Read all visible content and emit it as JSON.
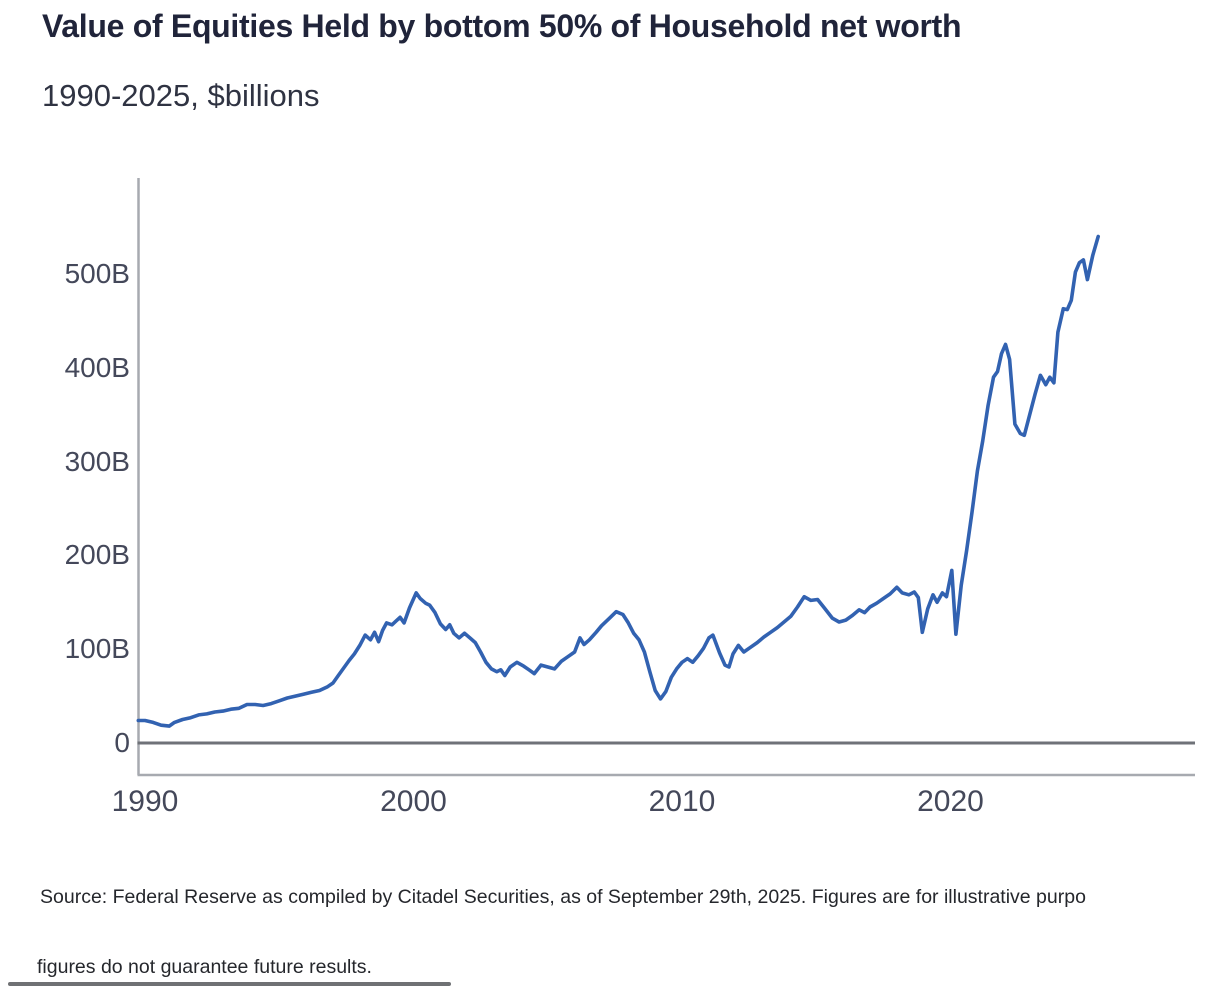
{
  "header": {
    "title": "Value of Equities Held by bottom 50% of Household net worth",
    "subtitle": "1990-2025, $billions"
  },
  "footer": {
    "source_line": "Source: Federal Reserve as compiled by Citadel Securities, as of September 29th, 2025. Figures are for illustrative purpo",
    "disclaimer_line": "figures do not guarantee future results."
  },
  "colors": {
    "line": "#3262b1",
    "title_text": "#20243a",
    "tick_text": "#44485a",
    "axis": "#a7aab0",
    "zero_line": "#6f7278",
    "footer_text": "#25272c"
  },
  "chart_data": {
    "type": "line",
    "title": "Value of Equities Held by bottom 50% of Household net worth",
    "subtitle": "1990-2025, $billions",
    "xlabel": "",
    "ylabel": "$billions",
    "grid": false,
    "legend": "none",
    "ylim": [
      0,
      600
    ],
    "x_axis_range_years": [
      1990,
      2029
    ],
    "y_ticks": [
      {
        "label": "500B",
        "value": 500
      },
      {
        "label": "400B",
        "value": 400
      },
      {
        "label": "300B",
        "value": 300
      },
      {
        "label": "200B",
        "value": 200
      },
      {
        "label": "100B",
        "value": 100
      },
      {
        "label": "0",
        "value": 0
      }
    ],
    "x_ticks": [
      {
        "label": "1990",
        "year": 1990
      },
      {
        "label": "2000",
        "year": 2000
      },
      {
        "label": "2010",
        "year": 2010
      },
      {
        "label": "2020",
        "year": 2020
      }
    ],
    "series": [
      {
        "name": "Value of equities held by bottom 50% of household net worth ($B)",
        "points": [
          [
            1989.75,
            24
          ],
          [
            1990.0,
            24
          ],
          [
            1990.3,
            22
          ],
          [
            1990.6,
            19
          ],
          [
            1990.9,
            18
          ],
          [
            1991.1,
            22
          ],
          [
            1991.4,
            25
          ],
          [
            1991.7,
            27
          ],
          [
            1992.0,
            30
          ],
          [
            1992.3,
            31
          ],
          [
            1992.6,
            33
          ],
          [
            1992.9,
            34
          ],
          [
            1993.2,
            36
          ],
          [
            1993.5,
            37
          ],
          [
            1993.8,
            41
          ],
          [
            1994.1,
            41
          ],
          [
            1994.4,
            40
          ],
          [
            1994.7,
            42
          ],
          [
            1995.0,
            45
          ],
          [
            1995.3,
            48
          ],
          [
            1995.6,
            50
          ],
          [
            1995.9,
            52
          ],
          [
            1996.2,
            54
          ],
          [
            1996.5,
            56
          ],
          [
            1996.8,
            60
          ],
          [
            1997.0,
            64
          ],
          [
            1997.2,
            72
          ],
          [
            1997.4,
            80
          ],
          [
            1997.6,
            88
          ],
          [
            1997.8,
            95
          ],
          [
            1998.0,
            104
          ],
          [
            1998.2,
            115
          ],
          [
            1998.4,
            110
          ],
          [
            1998.55,
            118
          ],
          [
            1998.7,
            108
          ],
          [
            1998.85,
            120
          ],
          [
            1999.0,
            128
          ],
          [
            1999.2,
            126
          ],
          [
            1999.35,
            130
          ],
          [
            1999.5,
            134
          ],
          [
            1999.65,
            128
          ],
          [
            1999.85,
            144
          ],
          [
            2000.1,
            160
          ],
          [
            2000.25,
            154
          ],
          [
            2000.45,
            149
          ],
          [
            2000.6,
            147
          ],
          [
            2000.8,
            139
          ],
          [
            2001.0,
            127
          ],
          [
            2001.2,
            121
          ],
          [
            2001.35,
            126
          ],
          [
            2001.5,
            117
          ],
          [
            2001.7,
            112
          ],
          [
            2001.9,
            117
          ],
          [
            2002.1,
            112
          ],
          [
            2002.3,
            107
          ],
          [
            2002.5,
            97
          ],
          [
            2002.7,
            86
          ],
          [
            2002.9,
            79
          ],
          [
            2003.1,
            76
          ],
          [
            2003.25,
            78
          ],
          [
            2003.4,
            72
          ],
          [
            2003.6,
            81
          ],
          [
            2003.85,
            86
          ],
          [
            2004.1,
            82
          ],
          [
            2004.3,
            78
          ],
          [
            2004.5,
            74
          ],
          [
            2004.75,
            83
          ],
          [
            2005.0,
            81
          ],
          [
            2005.25,
            79
          ],
          [
            2005.5,
            87
          ],
          [
            2005.75,
            92
          ],
          [
            2006.0,
            97
          ],
          [
            2006.2,
            112
          ],
          [
            2006.35,
            105
          ],
          [
            2006.55,
            110
          ],
          [
            2006.8,
            118
          ],
          [
            2007.0,
            125
          ],
          [
            2007.3,
            133
          ],
          [
            2007.55,
            140
          ],
          [
            2007.8,
            137
          ],
          [
            2008.0,
            128
          ],
          [
            2008.2,
            117
          ],
          [
            2008.4,
            110
          ],
          [
            2008.6,
            97
          ],
          [
            2008.8,
            76
          ],
          [
            2009.0,
            56
          ],
          [
            2009.2,
            47
          ],
          [
            2009.4,
            55
          ],
          [
            2009.6,
            70
          ],
          [
            2009.8,
            79
          ],
          [
            2010.0,
            86
          ],
          [
            2010.2,
            90
          ],
          [
            2010.4,
            86
          ],
          [
            2010.6,
            93
          ],
          [
            2010.8,
            101
          ],
          [
            2011.0,
            112
          ],
          [
            2011.15,
            115
          ],
          [
            2011.4,
            96
          ],
          [
            2011.6,
            83
          ],
          [
            2011.75,
            81
          ],
          [
            2011.9,
            95
          ],
          [
            2012.1,
            104
          ],
          [
            2012.3,
            97
          ],
          [
            2012.55,
            102
          ],
          [
            2012.8,
            107
          ],
          [
            2013.05,
            113
          ],
          [
            2013.3,
            118
          ],
          [
            2013.55,
            123
          ],
          [
            2013.8,
            129
          ],
          [
            2014.05,
            135
          ],
          [
            2014.3,
            145
          ],
          [
            2014.55,
            156
          ],
          [
            2014.8,
            152
          ],
          [
            2015.05,
            153
          ],
          [
            2015.3,
            144
          ],
          [
            2015.6,
            133
          ],
          [
            2015.85,
            129
          ],
          [
            2016.1,
            131
          ],
          [
            2016.35,
            136
          ],
          [
            2016.6,
            142
          ],
          [
            2016.8,
            139
          ],
          [
            2017.0,
            145
          ],
          [
            2017.25,
            149
          ],
          [
            2017.5,
            154
          ],
          [
            2017.75,
            159
          ],
          [
            2018.0,
            166
          ],
          [
            2018.2,
            160
          ],
          [
            2018.45,
            158
          ],
          [
            2018.65,
            161
          ],
          [
            2018.8,
            155
          ],
          [
            2018.95,
            118
          ],
          [
            2019.15,
            143
          ],
          [
            2019.35,
            158
          ],
          [
            2019.5,
            150
          ],
          [
            2019.7,
            160
          ],
          [
            2019.85,
            156
          ],
          [
            2020.05,
            184
          ],
          [
            2020.2,
            116
          ],
          [
            2020.4,
            168
          ],
          [
            2020.6,
            205
          ],
          [
            2020.8,
            246
          ],
          [
            2021.0,
            290
          ],
          [
            2021.2,
            322
          ],
          [
            2021.4,
            360
          ],
          [
            2021.6,
            390
          ],
          [
            2021.75,
            396
          ],
          [
            2021.9,
            415
          ],
          [
            2022.05,
            425
          ],
          [
            2022.2,
            409
          ],
          [
            2022.4,
            340
          ],
          [
            2022.6,
            330
          ],
          [
            2022.75,
            328
          ],
          [
            2022.95,
            350
          ],
          [
            2023.15,
            372
          ],
          [
            2023.35,
            392
          ],
          [
            2023.55,
            382
          ],
          [
            2023.7,
            390
          ],
          [
            2023.85,
            384
          ],
          [
            2024.0,
            438
          ],
          [
            2024.2,
            463
          ],
          [
            2024.35,
            462
          ],
          [
            2024.5,
            472
          ],
          [
            2024.65,
            502
          ],
          [
            2024.8,
            512
          ],
          [
            2024.95,
            515
          ],
          [
            2025.1,
            494
          ],
          [
            2025.3,
            520
          ],
          [
            2025.5,
            540
          ]
        ]
      }
    ]
  }
}
